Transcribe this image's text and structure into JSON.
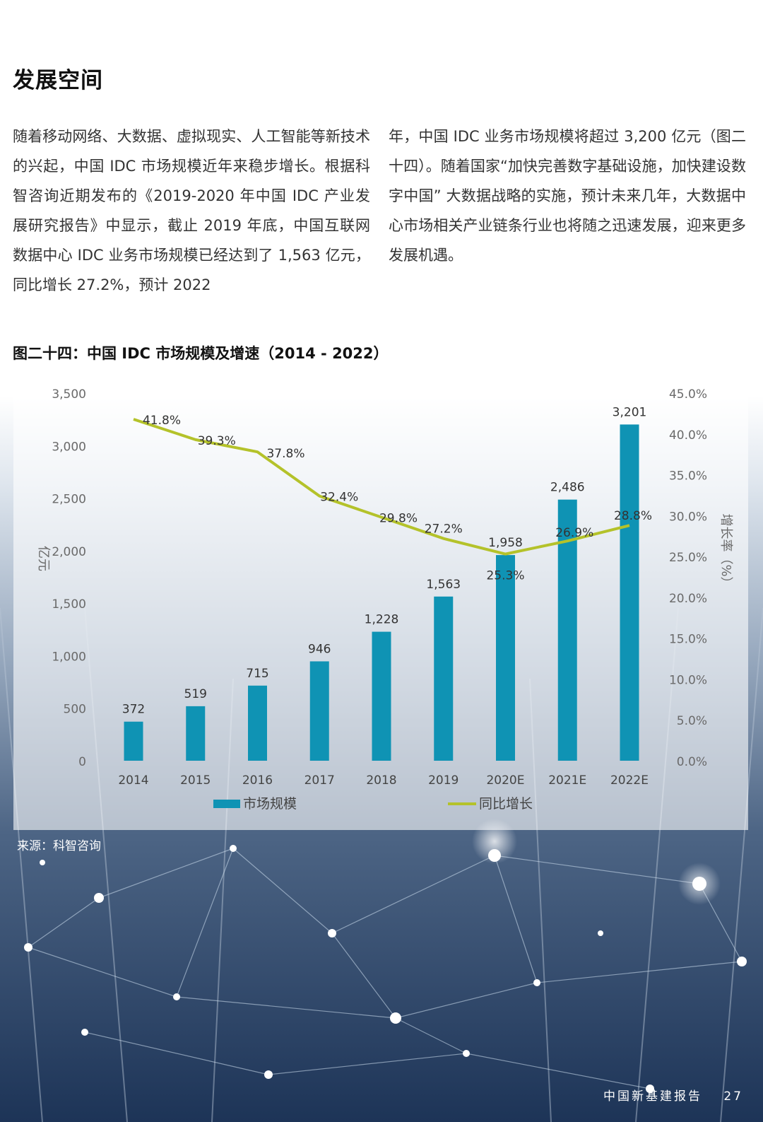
{
  "heading": "发展空间",
  "paragraph_left": "随着移动网络、大数据、虚拟现实、人工智能等新技术的兴起，中国 IDC 市场规模近年来稳步增长。根据科智咨询近期发布的《2019-2020 年中国 IDC 产业发展研究报告》中显示，截止 2019 年底，中国互联网数据中心 IDC 业务市场规模已经达到了 1,563 亿元，同比增长 27.2%，预计 2022",
  "paragraph_right": "年，中国 IDC 业务市场规模将超过 3,200 亿元（图二十四）。随着国家“加快完善数字基础设施，加快建设数字中国” 大数据战略的实施，预计未来几年，大数据中心市场相关产业链条行业也将随之迅速发展，迎来更多发展机遇。",
  "chart_title": "图二十四：中国 IDC 市场规模及增速（2014 - 2022）",
  "source": "来源：科智咨询",
  "footer": {
    "report": "中国新基建报告",
    "page": "27"
  },
  "chart_data": {
    "type": "bar+line",
    "title": "图二十四：中国 IDC 市场规模及增速（2014 - 2022）",
    "categories": [
      "2014",
      "2015",
      "2016",
      "2017",
      "2018",
      "2019",
      "2020E",
      "2021E",
      "2022E"
    ],
    "ylabel_left": "亿元",
    "ylabel_right": "增长率（%）",
    "ylim_left": [
      0,
      3500
    ],
    "ylim_right": [
      0,
      45
    ],
    "yticks_left": [
      "0",
      "500",
      "1,000",
      "1,500",
      "2,000",
      "2,500",
      "3,000",
      "3,500"
    ],
    "yticks_right": [
      "0.0%",
      "5.0%",
      "10.0%",
      "15.0%",
      "20.0%",
      "25.0%",
      "30.0%",
      "35.0%",
      "40.0%",
      "45.0%"
    ],
    "grid": false,
    "legend_position": "bottom",
    "series": [
      {
        "name": "市场规模",
        "type": "bar",
        "axis": "left",
        "color": "#0f93b4",
        "values": [
          372,
          519,
          715,
          946,
          1228,
          1563,
          1958,
          2486,
          3201
        ],
        "labels": [
          "372",
          "519",
          "715",
          "946",
          "1,228",
          "1,563",
          "1,958",
          "2,486",
          "3,201"
        ]
      },
      {
        "name": "同比增长",
        "type": "line",
        "axis": "right",
        "color": "#b4c22a",
        "values": [
          41.8,
          39.3,
          37.8,
          32.4,
          29.8,
          27.2,
          25.3,
          26.9,
          28.8
        ],
        "labels": [
          "41.8%",
          "39.3%",
          "37.8%",
          "32.4%",
          "29.8%",
          "27.2%",
          "25.3%",
          "26.9%",
          "28.8%"
        ]
      }
    ]
  }
}
